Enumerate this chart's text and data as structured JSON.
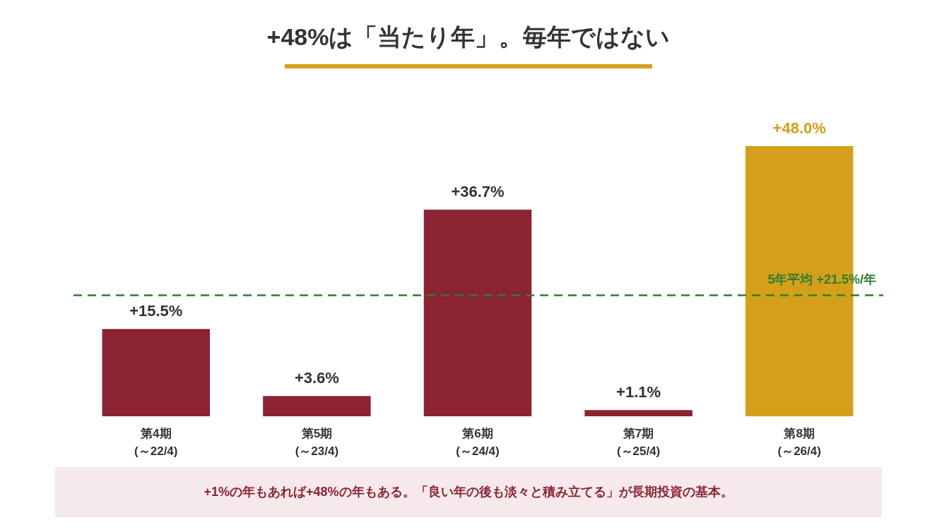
{
  "chart_data": {
    "type": "bar",
    "title": "+48%は「当たり年」。毎年ではない",
    "categories": [
      "第4期\n(～22/4)",
      "第5期\n(～23/4)",
      "第6期\n(～24/4)",
      "第7期\n(～25/4)",
      "第8期\n(～26/4)"
    ],
    "values": [
      15.5,
      3.6,
      36.7,
      1.1,
      48.0
    ],
    "value_labels": [
      "+15.5%",
      "+3.6%",
      "+36.7%",
      "+1.1%",
      "+48.0%"
    ],
    "colors": [
      "#8b2332",
      "#8b2332",
      "#8b2332",
      "#8b2332",
      "#d4a01a"
    ],
    "ref_lines": [
      {
        "axis": "y",
        "value": 21.5,
        "label": "5年平均 +21.5%/年",
        "color": "#2e7d32",
        "line_style": "dashed"
      }
    ],
    "annotations": [
      "+1%の年もあれば+48%の年もある。「良い年の後も淡々と積み立てる」が長期投資の基本。"
    ]
  }
}
